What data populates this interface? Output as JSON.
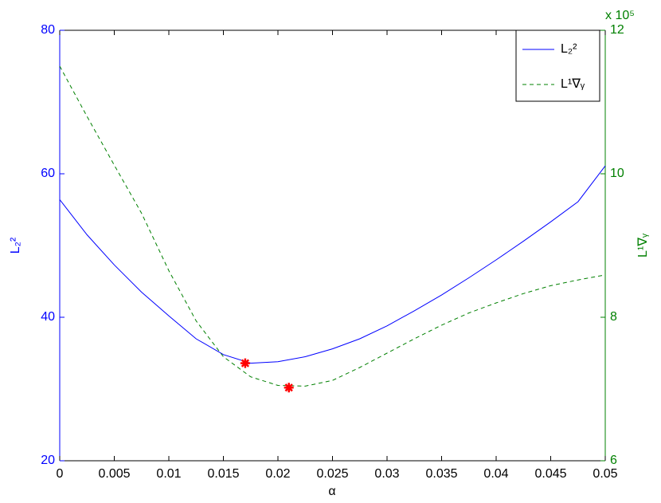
{
  "chart_data": {
    "type": "line",
    "xlabel": "α",
    "ylabel": "L₂²",
    "y2label": "L¹∇ᵧ",
    "y2_exponent_label": "x 10⁵",
    "x": [
      0,
      0.0025,
      0.005,
      0.0075,
      0.01,
      0.0125,
      0.015,
      0.0175,
      0.02,
      0.0225,
      0.025,
      0.0275,
      0.03,
      0.0325,
      0.035,
      0.0375,
      0.04,
      0.0425,
      0.045,
      0.0475,
      0.05
    ],
    "xlim": [
      0,
      0.05
    ],
    "xticks": [
      0,
      0.005,
      0.01,
      0.015,
      0.02,
      0.025,
      0.03,
      0.035,
      0.04,
      0.045,
      0.05
    ],
    "ylim": [
      20,
      80
    ],
    "yticks": [
      20,
      40,
      60,
      80
    ],
    "y2lim": [
      6,
      12
    ],
    "y2ticks": [
      6,
      8,
      10,
      12
    ],
    "legend": "upper right",
    "series": [
      {
        "name": "L₂²",
        "color": "#0000ff",
        "line_style": "solid",
        "values": [
          56.4,
          51.5,
          47.3,
          43.5,
          40.2,
          37.0,
          34.8,
          33.6,
          33.8,
          34.5,
          35.6,
          37.0,
          38.8,
          40.9,
          43.1,
          45.5,
          48.0,
          50.6,
          53.3,
          56.1,
          61.1
        ]
      },
      {
        "name": "L¹∇ᵧ",
        "color": "#008000",
        "line_style": "dashed",
        "axis": "y2",
        "values": [
          11.5,
          10.8,
          10.12,
          9.45,
          8.65,
          7.95,
          7.45,
          7.17,
          7.05,
          7.04,
          7.12,
          7.3,
          7.5,
          7.7,
          7.89,
          8.06,
          8.2,
          8.33,
          8.44,
          8.52,
          8.59
        ]
      }
    ],
    "markers": [
      {
        "x": 0.017,
        "y": 33.6,
        "color": "#ff0000"
      },
      {
        "x": 0.021,
        "y": 7.02,
        "axis": "y2",
        "color": "#ff0000"
      }
    ]
  }
}
